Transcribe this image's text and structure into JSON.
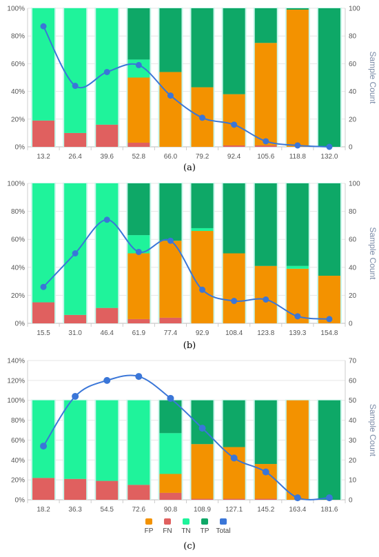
{
  "colors": {
    "FP": "#f39200",
    "FN": "#e0605f",
    "TN": "#1ff39b",
    "TP": "#0ea867",
    "Total": "#3a76d8",
    "halo": "#c8f5ea"
  },
  "chart_data": [
    {
      "type": "bar",
      "panel_label": "(a)",
      "categories": [
        "13.2",
        "26.4",
        "39.6",
        "52.8",
        "66.0",
        "79.2",
        "92.4",
        "105.6",
        "118.8",
        "132.0"
      ],
      "series": [
        {
          "name": "FP",
          "values": [
            0,
            0,
            0,
            47,
            54,
            43,
            37,
            74,
            99,
            0
          ]
        },
        {
          "name": "FN",
          "values": [
            19,
            10,
            16,
            3,
            0,
            0,
            1,
            1,
            0,
            0
          ]
        },
        {
          "name": "TN",
          "values": [
            81,
            90,
            84,
            13,
            0,
            0,
            0,
            0,
            0,
            0
          ]
        },
        {
          "name": "TP",
          "values": [
            0,
            0,
            0,
            37,
            46,
            57,
            62,
            25,
            1,
            100
          ]
        },
        {
          "name": "Total",
          "axis": "right",
          "values": [
            87,
            44,
            54,
            59,
            37,
            21,
            16,
            4,
            1,
            0
          ]
        }
      ],
      "y_left": {
        "ticks": [
          "0%",
          "20%",
          "40%",
          "60%",
          "80%",
          "100%"
        ],
        "range": [
          0,
          100
        ]
      },
      "y_right": {
        "ticks": [
          "0",
          "20",
          "40",
          "60",
          "80",
          "100"
        ],
        "range": [
          0,
          100
        ],
        "label": "Sample Count"
      },
      "grid": true
    },
    {
      "type": "bar",
      "panel_label": "(b)",
      "categories": [
        "15.5",
        "31.0",
        "46.4",
        "61.9",
        "77.4",
        "92.9",
        "108.4",
        "123.8",
        "139.3",
        "154.8"
      ],
      "series": [
        {
          "name": "FP",
          "values": [
            0,
            0,
            0,
            47,
            55,
            66,
            50,
            41,
            39,
            34
          ]
        },
        {
          "name": "FN",
          "values": [
            15,
            6,
            11,
            3,
            4,
            0,
            0,
            0,
            0,
            0
          ]
        },
        {
          "name": "TN",
          "values": [
            85,
            94,
            89,
            13,
            0,
            2,
            0,
            0,
            2,
            0
          ]
        },
        {
          "name": "TP",
          "values": [
            0,
            0,
            0,
            37,
            41,
            32,
            50,
            59,
            59,
            66
          ]
        },
        {
          "name": "Total",
          "axis": "right",
          "values": [
            26,
            50,
            74,
            51,
            59,
            24,
            16,
            17,
            5,
            3
          ]
        }
      ],
      "y_left": {
        "ticks": [
          "0%",
          "20%",
          "40%",
          "60%",
          "80%",
          "100%"
        ],
        "range": [
          0,
          100
        ]
      },
      "y_right": {
        "ticks": [
          "0",
          "20",
          "40",
          "60",
          "80",
          "100"
        ],
        "range": [
          0,
          100
        ],
        "label": "Sample Count"
      },
      "grid": true
    },
    {
      "type": "bar",
      "panel_label": "(c)",
      "categories": [
        "18.2",
        "36.3",
        "54.5",
        "72.6",
        "90.8",
        "108.9",
        "127.1",
        "145.2",
        "163.4",
        "181.6"
      ],
      "series": [
        {
          "name": "FP",
          "values": [
            0,
            0,
            0,
            0,
            19,
            55,
            52,
            35,
            100,
            0
          ]
        },
        {
          "name": "FN",
          "values": [
            22,
            21,
            19,
            15,
            7,
            1,
            1,
            1,
            0,
            0
          ]
        },
        {
          "name": "TN",
          "values": [
            78,
            79,
            81,
            85,
            41,
            0,
            0,
            0,
            0,
            0
          ]
        },
        {
          "name": "TP",
          "values": [
            0,
            0,
            0,
            0,
            33,
            44,
            47,
            64,
            0,
            100
          ]
        },
        {
          "name": "Total",
          "axis": "right",
          "values": [
            27,
            52,
            60,
            62,
            51,
            36,
            21,
            14,
            1,
            1
          ]
        }
      ],
      "y_left": {
        "ticks": [
          "0%",
          "20%",
          "40%",
          "60%",
          "80%",
          "100%",
          "120%",
          "140%"
        ],
        "range": [
          0,
          140
        ]
      },
      "y_right": {
        "ticks": [
          "0",
          "10",
          "20",
          "30",
          "40",
          "50",
          "60",
          "70"
        ],
        "range": [
          0,
          70
        ],
        "label": "Sample Count"
      },
      "legend": {
        "position": "bottom",
        "entries": [
          "FP",
          "FN",
          "TN",
          "TP",
          "Total"
        ]
      },
      "grid": true
    }
  ]
}
